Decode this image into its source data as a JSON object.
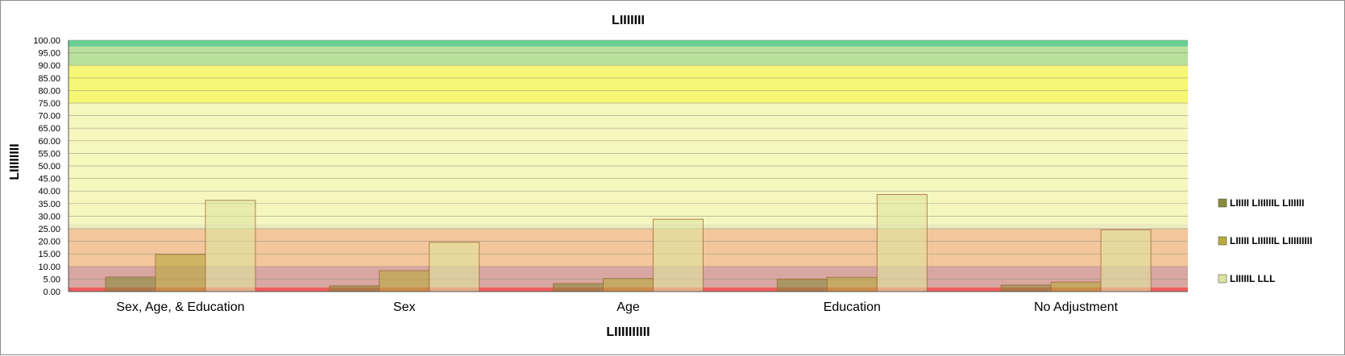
{
  "chart_data": {
    "type": "bar",
    "title": "LIIIIIII",
    "xlabel": "LIIIIIIIIII",
    "ylabel": "LIIIIIIII",
    "ylim": [
      0,
      100
    ],
    "ytick_step": 5,
    "categories": [
      "Sex, Age, & Education",
      "Sex",
      "Age",
      "Education",
      "No Adjustment"
    ],
    "series": [
      {
        "name": "LIIIII LIIIIIIL LIIIIII",
        "color": "#8b8a3c",
        "values": [
          5.8,
          2.3,
          3.2,
          5.0,
          2.6
        ]
      },
      {
        "name": "LIIIII LIIIIIIL LIIIIIIIII",
        "color": "#b8aa3e",
        "values": [
          14.8,
          8.3,
          5.2,
          5.7,
          3.8
        ]
      },
      {
        "name": "LIIIIIL LLL",
        "color": "#dfe59e",
        "values": [
          36.3,
          19.6,
          28.8,
          38.6,
          24.6
        ]
      }
    ],
    "bands": [
      {
        "from": 0,
        "to": 1.7,
        "color": "#ee5d5d"
      },
      {
        "from": 1.7,
        "to": 10,
        "color": "#d9a7a1"
      },
      {
        "from": 10,
        "to": 25,
        "color": "#f3c69b"
      },
      {
        "from": 25,
        "to": 27,
        "color": "#ebebbf"
      },
      {
        "from": 27,
        "to": 75,
        "color": "#f6f6bf"
      },
      {
        "from": 75,
        "to": 90,
        "color": "#f6f677"
      },
      {
        "from": 90,
        "to": 97.5,
        "color": "#b9e09c"
      },
      {
        "from": 97.5,
        "to": 100,
        "color": "#6acf95"
      }
    ],
    "grid": true,
    "legend_position": "right"
  }
}
